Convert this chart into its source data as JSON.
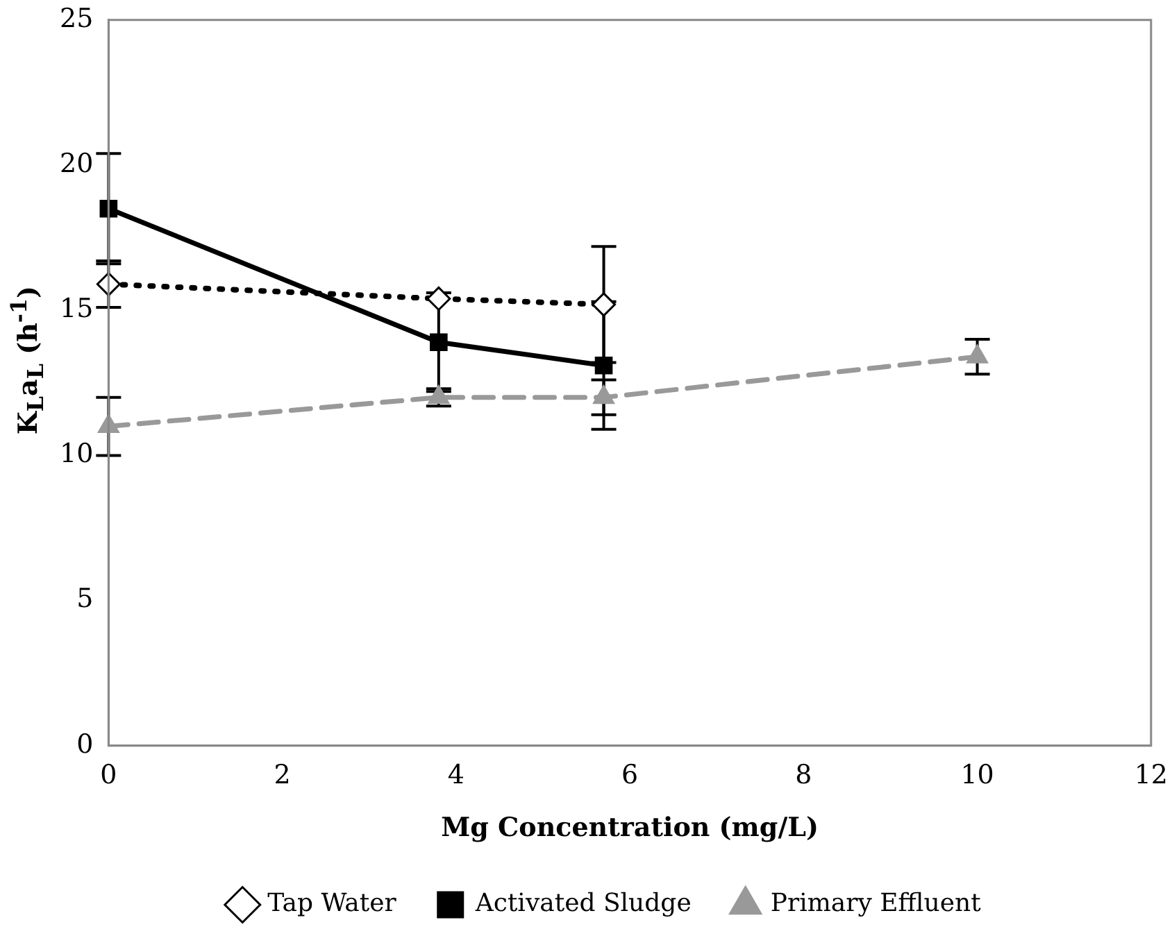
{
  "chart_data": {
    "type": "line",
    "xlabel": "Mg Concentration (mg/L)",
    "ylabel": "K$_{L}$a$_{L}$ (h$^{-1}$)",
    "xlim": [
      0,
      12
    ],
    "xticks": [
      0,
      2,
      4,
      6,
      8,
      10,
      12
    ],
    "ylim": [
      0,
      25
    ],
    "yticks": [
      0,
      5,
      10,
      15,
      20,
      25
    ],
    "grid": false,
    "legend": "bottom",
    "series": [
      {
        "name": "Tap Water",
        "color": "#000000",
        "x": [
          0,
          3.8,
          5.7
        ],
        "values": [
          15.9,
          15.4,
          15.2
        ],
        "errors": [
          0.8,
          null,
          2.0
        ],
        "marker": "diamond",
        "line_style": "dotted"
      },
      {
        "name": "Activated Sludge",
        "color": "#000000",
        "x": [
          0,
          3.8,
          5.7
        ],
        "values": [
          18.5,
          13.9,
          13.1
        ],
        "errors": [
          1.9,
          1.7,
          2.2
        ],
        "marker": "square",
        "line_style": "solid"
      },
      {
        "name": "Primary Effluent",
        "color": "#999999",
        "x": [
          0,
          3.8,
          5.7,
          10
        ],
        "values": [
          11.0,
          12.0,
          12.0,
          13.4
        ],
        "errors": [
          1.0,
          0.3,
          0.6,
          0.6
        ],
        "marker": "triangle",
        "line_style": "dashed"
      }
    ]
  }
}
